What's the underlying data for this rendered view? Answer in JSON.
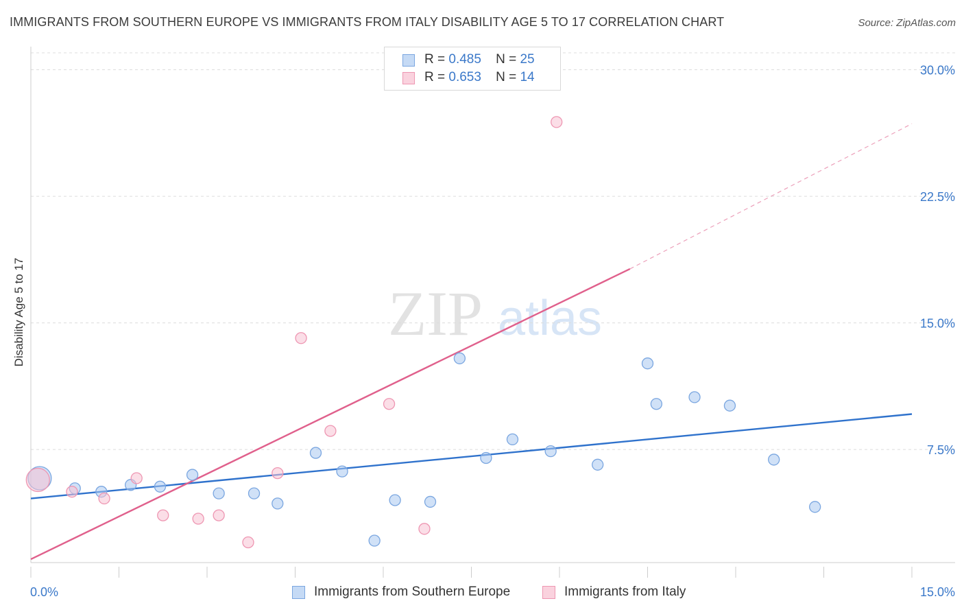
{
  "chart_data": {
    "type": "scatter",
    "title": "IMMIGRANTS FROM SOUTHERN EUROPE VS IMMIGRANTS FROM ITALY DISABILITY AGE 5 TO 17 CORRELATION CHART",
    "source": "Source: ZipAtlas.com",
    "ylabel": "Disability Age 5 to 17",
    "xlim": [
      0,
      15
    ],
    "ylim": [
      0.8,
      31
    ],
    "x_tick_labels": [
      "0.0%",
      "15.0%"
    ],
    "y_ticks": [
      7.5,
      15.0,
      22.5,
      30.0
    ],
    "y_tick_labels": [
      "7.5%",
      "15.0%",
      "22.5%",
      "30.0%"
    ],
    "watermark": {
      "zip": "ZIP",
      "atlas": "atlas"
    },
    "legend": {
      "r_label": "R =",
      "n_label": "N =",
      "rows": [
        {
          "r": "0.485",
          "n": "25"
        },
        {
          "r": "0.653",
          "n": "14"
        }
      ]
    },
    "series": [
      {
        "name": "Immigrants from Southern Europe",
        "color": "#a9c8f0",
        "stroke": "#7aa6e0",
        "line_color": "#2f72cc",
        "trend": {
          "x0": 0,
          "y0": 4.6,
          "x1": 15,
          "y1": 9.6
        },
        "points": [
          {
            "x": 0.15,
            "y": 5.8,
            "big": true
          },
          {
            "x": 0.75,
            "y": 5.2
          },
          {
            "x": 1.2,
            "y": 5.0
          },
          {
            "x": 1.7,
            "y": 5.4
          },
          {
            "x": 2.2,
            "y": 5.3
          },
          {
            "x": 2.75,
            "y": 6.0
          },
          {
            "x": 3.2,
            "y": 4.9
          },
          {
            "x": 3.8,
            "y": 4.9
          },
          {
            "x": 4.2,
            "y": 4.3
          },
          {
            "x": 4.85,
            "y": 7.3
          },
          {
            "x": 5.3,
            "y": 6.2
          },
          {
            "x": 5.85,
            "y": 2.1
          },
          {
            "x": 6.2,
            "y": 4.5
          },
          {
            "x": 6.8,
            "y": 4.4
          },
          {
            "x": 7.3,
            "y": 12.9
          },
          {
            "x": 7.75,
            "y": 7.0
          },
          {
            "x": 8.2,
            "y": 8.1
          },
          {
            "x": 8.85,
            "y": 7.4
          },
          {
            "x": 9.65,
            "y": 6.6
          },
          {
            "x": 10.5,
            "y": 12.6
          },
          {
            "x": 10.65,
            "y": 10.2
          },
          {
            "x": 11.3,
            "y": 10.6
          },
          {
            "x": 11.9,
            "y": 10.1
          },
          {
            "x": 12.65,
            "y": 6.9
          },
          {
            "x": 13.35,
            "y": 4.1
          }
        ]
      },
      {
        "name": "Immigrants from Italy",
        "color": "#f7c3d3",
        "stroke": "#ee96b2",
        "line_color": "#e0608c",
        "trend": {
          "x0": 0,
          "y0": 1.0,
          "x1": 10.2,
          "y1": 18.2
        },
        "trend_ext": {
          "x0": 10.2,
          "y0": 18.2,
          "x1": 15,
          "y1": 26.8
        },
        "points": [
          {
            "x": 0.12,
            "y": 5.7,
            "big": true
          },
          {
            "x": 0.7,
            "y": 5.0
          },
          {
            "x": 1.25,
            "y": 4.6
          },
          {
            "x": 1.8,
            "y": 5.8
          },
          {
            "x": 2.25,
            "y": 3.6
          },
          {
            "x": 2.85,
            "y": 3.4
          },
          {
            "x": 3.2,
            "y": 3.6
          },
          {
            "x": 3.7,
            "y": 2.0
          },
          {
            "x": 4.2,
            "y": 6.1
          },
          {
            "x": 4.6,
            "y": 14.1
          },
          {
            "x": 5.1,
            "y": 8.6
          },
          {
            "x": 6.1,
            "y": 10.2
          },
          {
            "x": 6.7,
            "y": 2.8
          },
          {
            "x": 8.95,
            "y": 26.9
          }
        ]
      }
    ]
  }
}
